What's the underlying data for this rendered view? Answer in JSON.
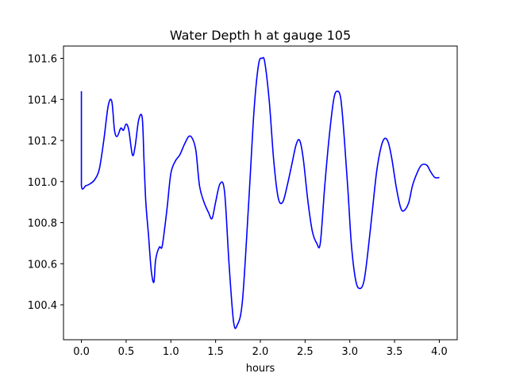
{
  "chart_data": {
    "type": "line",
    "title": "Water Depth h at gauge 105",
    "xlabel": "hours",
    "ylabel": "",
    "xlim": [
      -0.2,
      4.2
    ],
    "ylim": [
      100.23,
      101.66
    ],
    "xticks": [
      0.0,
      0.5,
      1.0,
      1.5,
      2.0,
      2.5,
      3.0,
      3.5,
      4.0
    ],
    "xtick_labels": [
      "0.0",
      "0.5",
      "1.0",
      "1.5",
      "2.0",
      "2.5",
      "3.0",
      "3.5",
      "4.0"
    ],
    "yticks": [
      100.4,
      100.6,
      100.8,
      101.0,
      101.2,
      101.4,
      101.6
    ],
    "ytick_labels": [
      "100.4",
      "100.6",
      "100.8",
      "101.0",
      "101.2",
      "101.4",
      "101.6"
    ],
    "grid": false,
    "series": [
      {
        "color": "#0000ff",
        "x": [
          0.0,
          0.0,
          0.0,
          0.05,
          0.1,
          0.15,
          0.2,
          0.25,
          0.3,
          0.34,
          0.37,
          0.4,
          0.44,
          0.47,
          0.5,
          0.53,
          0.57,
          0.6,
          0.64,
          0.68,
          0.7,
          0.72,
          0.75,
          0.78,
          0.81,
          0.83,
          0.87,
          0.9,
          0.93,
          0.96,
          1.0,
          1.05,
          1.1,
          1.15,
          1.2,
          1.24,
          1.28,
          1.32,
          1.37,
          1.42,
          1.46,
          1.5,
          1.55,
          1.6,
          1.65,
          1.7,
          1.74,
          1.8,
          1.87,
          1.93,
          1.98,
          2.02,
          2.05,
          2.1,
          2.15,
          2.2,
          2.25,
          2.3,
          2.35,
          2.4,
          2.44,
          2.48,
          2.53,
          2.58,
          2.63,
          2.67,
          2.72,
          2.77,
          2.82,
          2.86,
          2.9,
          2.94,
          2.98,
          3.02,
          3.07,
          3.12,
          3.16,
          3.2,
          3.25,
          3.3,
          3.35,
          3.39,
          3.43,
          3.47,
          3.52,
          3.57,
          3.61,
          3.66,
          3.7,
          3.75,
          3.8,
          3.86,
          3.9,
          3.95,
          4.0
        ],
        "y": [
          101.44,
          101.2,
          100.98,
          100.98,
          100.99,
          101.01,
          101.06,
          101.2,
          101.37,
          101.39,
          101.25,
          101.22,
          101.26,
          101.25,
          101.28,
          101.25,
          101.13,
          101.17,
          101.3,
          101.31,
          101.1,
          100.9,
          100.74,
          100.57,
          100.51,
          100.62,
          100.68,
          100.68,
          100.77,
          100.88,
          101.04,
          101.1,
          101.13,
          101.18,
          101.22,
          101.21,
          101.15,
          100.98,
          100.9,
          100.85,
          100.82,
          100.9,
          100.99,
          100.95,
          100.6,
          100.32,
          100.3,
          100.42,
          100.9,
          101.35,
          101.57,
          101.6,
          101.58,
          101.39,
          101.1,
          100.92,
          100.9,
          100.98,
          101.08,
          101.18,
          101.2,
          101.11,
          100.91,
          100.76,
          100.7,
          100.7,
          100.98,
          101.22,
          101.4,
          101.44,
          101.4,
          101.2,
          100.95,
          100.68,
          100.51,
          100.48,
          100.52,
          100.65,
          100.85,
          101.05,
          101.17,
          101.21,
          101.19,
          101.11,
          100.97,
          100.87,
          100.86,
          100.9,
          100.98,
          101.04,
          101.08,
          101.08,
          101.05,
          101.02,
          101.02
        ]
      }
    ]
  }
}
